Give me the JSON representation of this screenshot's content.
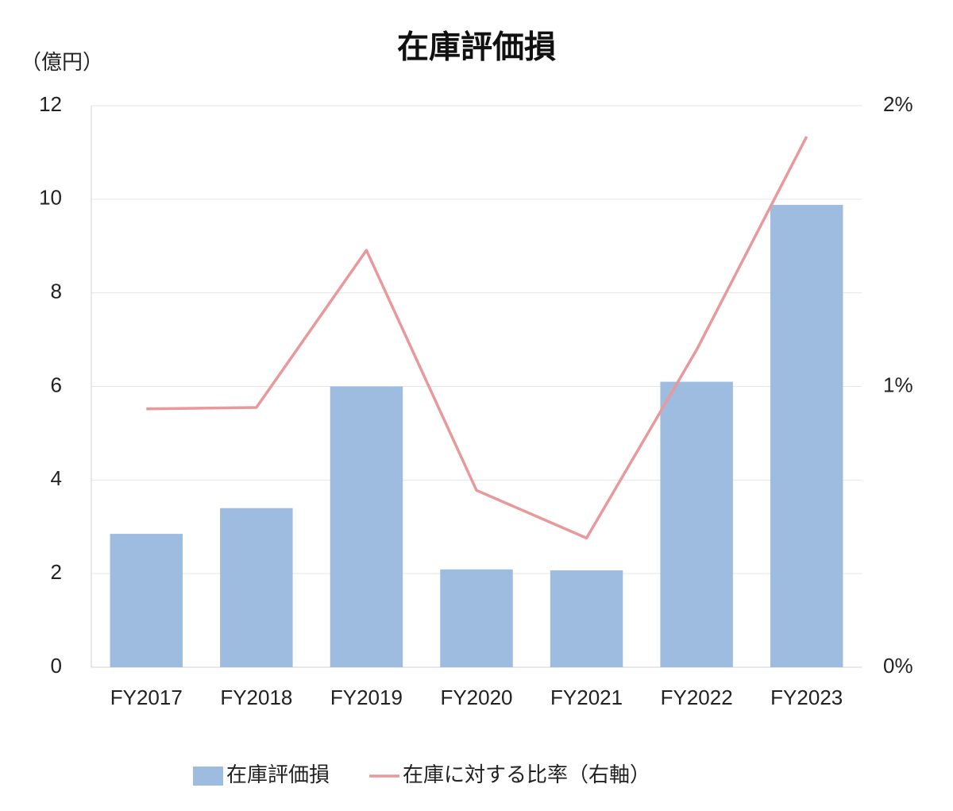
{
  "chart_data": {
    "type": "bar_line",
    "title": "在庫評価損",
    "y_unit": "（億円）",
    "categories": [
      "FY2017",
      "FY2018",
      "FY2019",
      "FY2020",
      "FY2021",
      "FY2022",
      "FY2023"
    ],
    "series": [
      {
        "name": "在庫評価損",
        "type": "bar",
        "color": "#9dbce0",
        "values": [
          2.85,
          3.4,
          6.0,
          2.09,
          2.07,
          6.1,
          9.88
        ]
      },
      {
        "name": "在庫に対する比率（右軸）",
        "type": "line",
        "axis": "y2",
        "color": "#e8999c",
        "values": [
          0.92,
          0.925,
          1.485,
          0.63,
          0.46,
          1.13,
          1.89
        ]
      }
    ],
    "ylim": [
      0,
      12
    ],
    "yticks": [
      0,
      2,
      4,
      6,
      8,
      10,
      12
    ],
    "y2lim": [
      0,
      2
    ],
    "y2ticks": [
      {
        "value": 0,
        "label": "0%"
      },
      {
        "value": 1,
        "label": "1%"
      },
      {
        "value": 2,
        "label": "2%"
      }
    ],
    "grid": true,
    "legend": "bottom"
  }
}
